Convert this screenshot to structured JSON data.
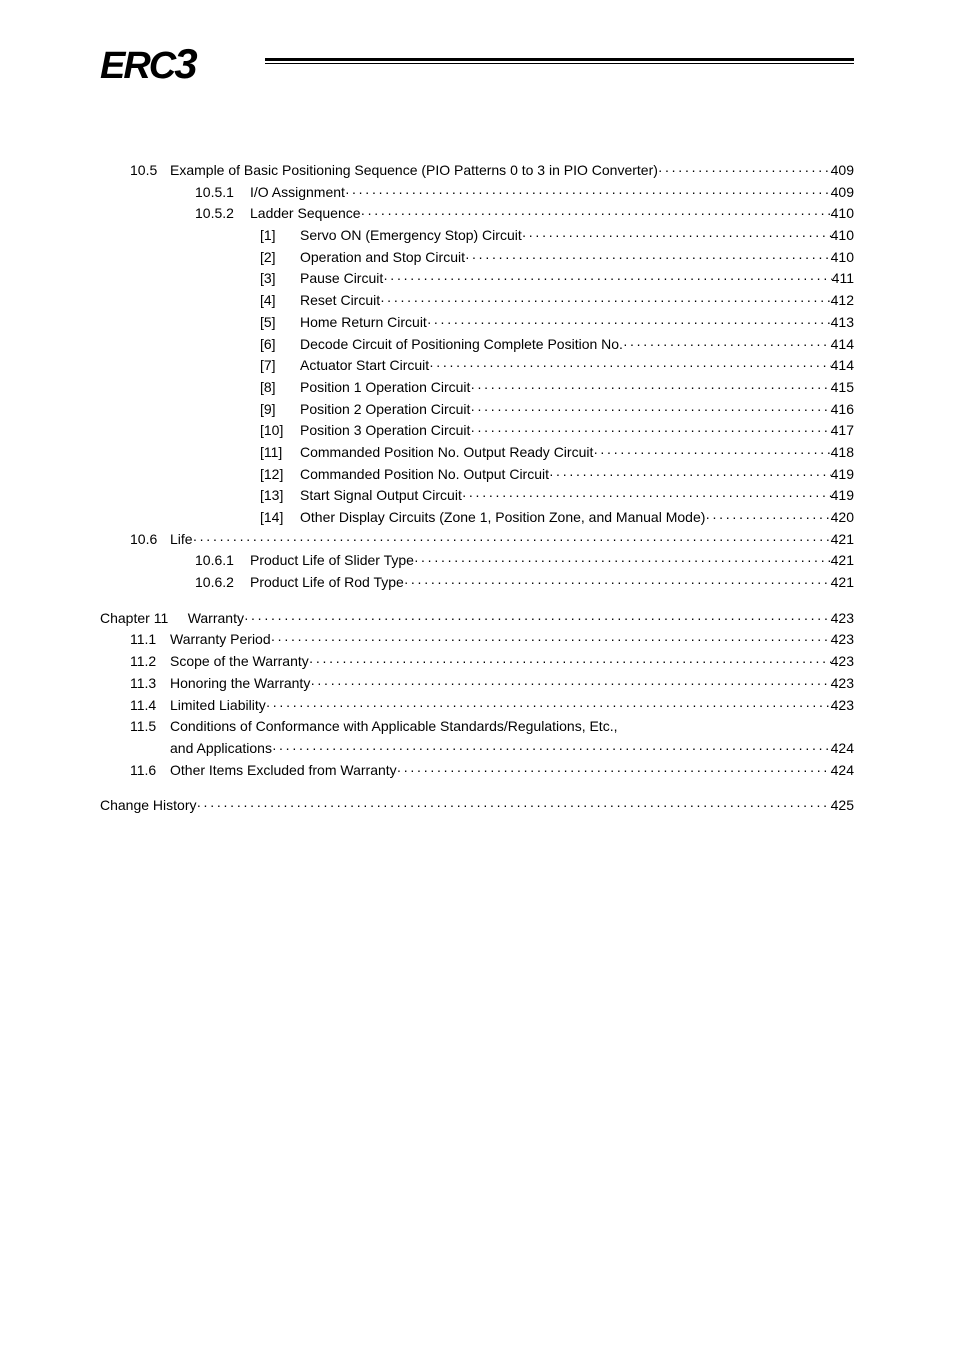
{
  "logo": {
    "prefix": "ERC",
    "suffix": "3"
  },
  "toc": [
    {
      "level": "a",
      "num": "10.5",
      "label": "Example of Basic Positioning Sequence (PIO Patterns 0 to 3 in PIO Converter)",
      "page": "409"
    },
    {
      "level": "b",
      "num": "10.5.1",
      "label": "I/O Assignment",
      "page": "409"
    },
    {
      "level": "b",
      "num": "10.5.2",
      "label": "Ladder Sequence",
      "page": "410"
    },
    {
      "level": "c",
      "num": "[1]",
      "label": "Servo ON (Emergency Stop) Circuit",
      "page": "410"
    },
    {
      "level": "c",
      "num": "[2]",
      "label": "Operation and Stop Circuit",
      "page": "410"
    },
    {
      "level": "c",
      "num": "[3]",
      "label": "Pause Circuit",
      "page": "411"
    },
    {
      "level": "c",
      "num": "[4]",
      "label": "Reset Circuit",
      "page": "412"
    },
    {
      "level": "c",
      "num": "[5]",
      "label": "Home Return Circuit",
      "page": "413"
    },
    {
      "level": "c",
      "num": "[6]",
      "label": "Decode Circuit of Positioning Complete Position No.",
      "page": "414"
    },
    {
      "level": "c",
      "num": "[7]",
      "label": "Actuator Start Circuit",
      "page": "414"
    },
    {
      "level": "c",
      "num": "[8]",
      "label": "Position 1 Operation Circuit",
      "page": "415"
    },
    {
      "level": "c",
      "num": "[9]",
      "label": "Position 2 Operation Circuit",
      "page": "416"
    },
    {
      "level": "c",
      "num": "[10]",
      "label": "Position 3 Operation Circuit",
      "page": "417"
    },
    {
      "level": "c",
      "num": "[11]",
      "label": "Commanded Position No. Output Ready Circuit",
      "page": "418"
    },
    {
      "level": "c",
      "num": "[12]",
      "label": "Commanded Position No. Output Circuit",
      "page": "419"
    },
    {
      "level": "c",
      "num": "[13]",
      "label": "Start Signal Output Circuit",
      "page": "419"
    },
    {
      "level": "c",
      "num": "[14]",
      "label": "Other Display Circuits (Zone 1, Position Zone, and Manual Mode)",
      "page": "420"
    },
    {
      "level": "a",
      "num": "10.6",
      "label": "Life",
      "page": "421"
    },
    {
      "level": "b",
      "num": "10.6.1",
      "label": "Product Life of Slider Type",
      "page": "421"
    },
    {
      "level": "b",
      "num": "10.6.2",
      "label": "Product Life of Rod Type",
      "page": "421"
    },
    {
      "level": "spacer"
    },
    {
      "level": "chapter",
      "num": "Chapter 11",
      "label": "Warranty",
      "page": "423"
    },
    {
      "level": "a",
      "num": "11.1",
      "label": "Warranty Period",
      "page": "423"
    },
    {
      "level": "a",
      "num": "11.2",
      "label": "Scope of the Warranty",
      "page": "423"
    },
    {
      "level": "a",
      "num": "11.3",
      "label": "Honoring the Warranty",
      "page": "423"
    },
    {
      "level": "a",
      "num": "11.4",
      "label": "Limited Liability",
      "page": "423"
    },
    {
      "level": "a-twoline",
      "num": "11.5",
      "label1": "Conditions of Conformance with Applicable Standards/Regulations, Etc.,",
      "label2": "and Applications",
      "page": "424"
    },
    {
      "level": "a",
      "num": "11.6",
      "label": "Other Items Excluded from Warranty",
      "page": "424"
    },
    {
      "level": "spacer"
    },
    {
      "level": "top",
      "num": "",
      "label": "Change History",
      "page": "425"
    }
  ]
}
